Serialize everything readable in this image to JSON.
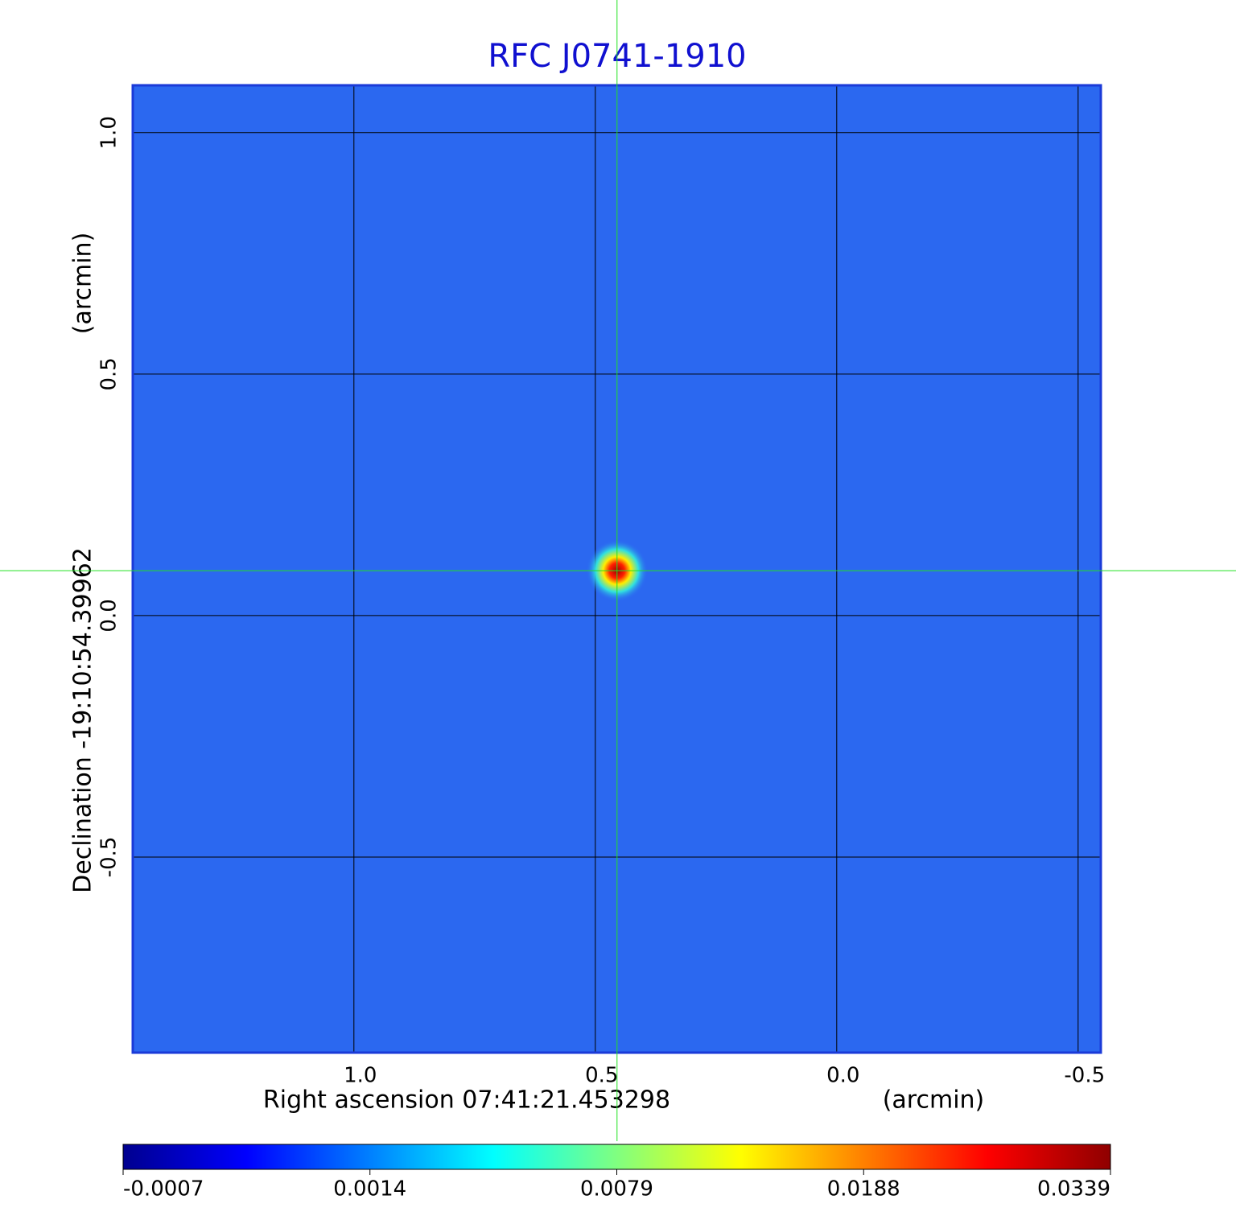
{
  "chart_data": {
    "type": "image",
    "title": "RFC J0741-1910",
    "xlabel": "Right ascension  07:41:21.453298",
    "xunit": "(arcmin)",
    "ylabel": "Declination  -19:10:54.39962",
    "yunit": "(arcmin)",
    "xlim": [
      1.458,
      -0.547
    ],
    "ylim": [
      -0.905,
      1.098
    ],
    "xticks": [
      {
        "value": 1,
        "label": "1.0"
      },
      0.5,
      {
        "value": 0,
        "label": "0.0"
      },
      -0.5
    ],
    "yticks": [
      {
        "value": 1,
        "label": "1.0"
      },
      0.5,
      {
        "value": 0,
        "label": "0.0"
      },
      -0.5
    ],
    "grid": true,
    "source": {
      "x": 0.455,
      "y": 0.093
    },
    "colorbar": {
      "ticks": [
        -0.0007,
        0.0014,
        0.0079,
        0.0188,
        0.0339
      ],
      "colormap": [
        "#00008f",
        "#0000ff",
        "#0080ff",
        "#00ffff",
        "#80ff80",
        "#ffff00",
        "#ff8000",
        "#ff0000",
        "#8f0000"
      ]
    }
  }
}
